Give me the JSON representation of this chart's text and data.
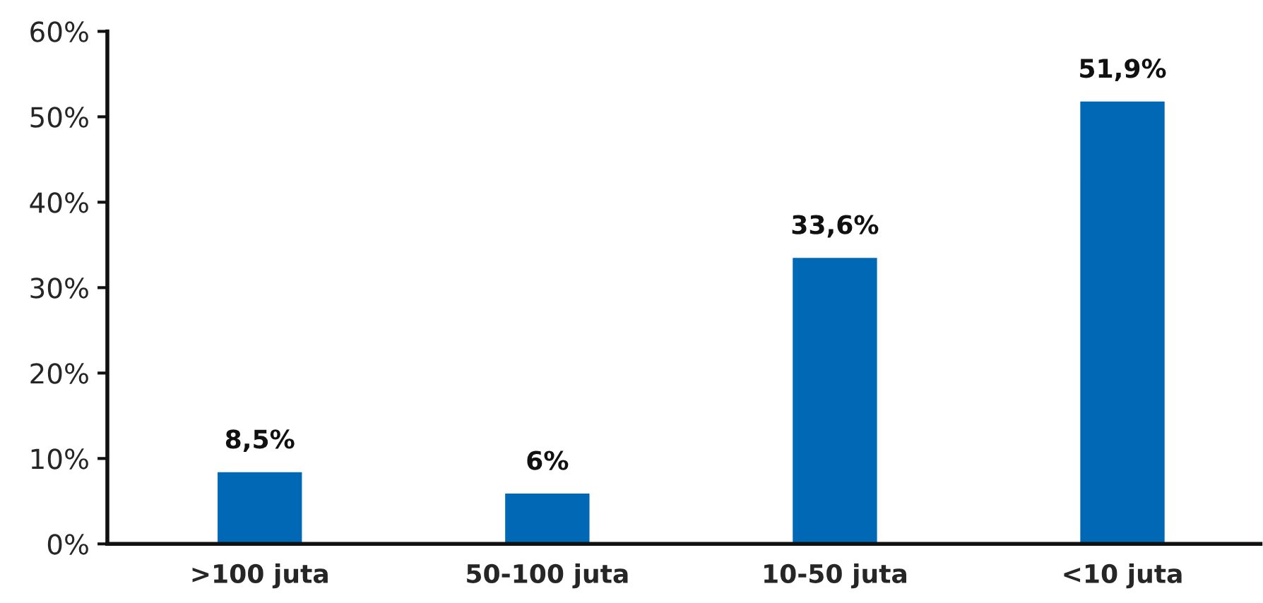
{
  "chart_data": {
    "type": "bar",
    "categories": [
      ">100 juta",
      "50-100 juta",
      "10-50 juta",
      "<10 juta"
    ],
    "values": [
      8.5,
      6,
      33.6,
      51.9
    ],
    "value_labels": [
      "8,5%",
      "6%",
      "33,6%",
      "51,9%"
    ],
    "color": "#0068b5",
    "ylim": [
      0,
      60
    ],
    "yticks": [
      {
        "value": 0,
        "label": "0%"
      },
      {
        "value": 10,
        "label": "10%"
      },
      {
        "value": 20,
        "label": "20%"
      },
      {
        "value": 30,
        "label": "30%"
      },
      {
        "value": 40,
        "label": "40%"
      },
      {
        "value": 50,
        "label": "50%"
      },
      {
        "value": 60,
        "label": "60%"
      }
    ],
    "grid": false,
    "legend": false
  }
}
